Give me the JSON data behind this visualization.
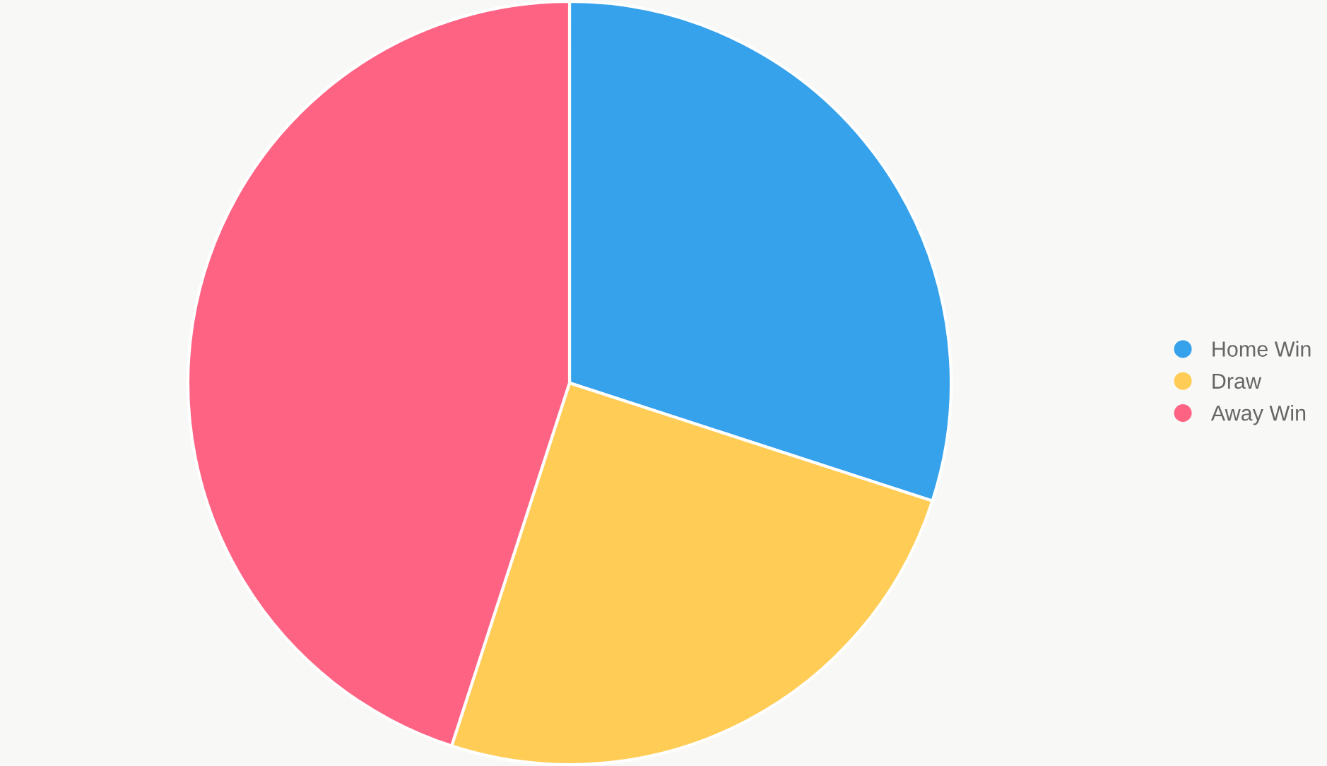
{
  "chart_data": {
    "type": "pie",
    "categories": [
      "Home Win",
      "Draw",
      "Away Win"
    ],
    "values": [
      30,
      25,
      45
    ],
    "colors": [
      "#36a2eb",
      "#ffcd56",
      "#ff6384"
    ],
    "legend": "right"
  }
}
